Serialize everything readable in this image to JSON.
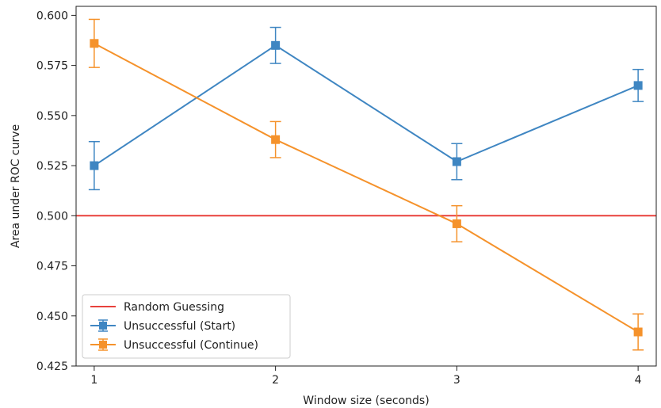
{
  "chart_data": {
    "type": "line",
    "title": "",
    "xlabel": "Window size (seconds)",
    "ylabel": "Area under ROC curve",
    "x": [
      1,
      2,
      3,
      4
    ],
    "x_tick_labels": [
      "1",
      "2",
      "3",
      "4"
    ],
    "xlim": [
      0.9,
      4.1
    ],
    "ylim": [
      0.425,
      0.6045
    ],
    "y_ticks": [
      0.425,
      0.45,
      0.475,
      0.5,
      0.525,
      0.55,
      0.575,
      0.6
    ],
    "y_tick_labels": [
      "0.425",
      "0.450",
      "0.475",
      "0.500",
      "0.525",
      "0.550",
      "0.575",
      "0.600"
    ],
    "grid": false,
    "legend_position": "lower-left",
    "reference_line": {
      "name": "Random Guessing",
      "y": 0.5,
      "color": "#e8413c"
    },
    "series": [
      {
        "name": "Unsuccessful (Start)",
        "color": "#3f86c2",
        "marker": "square",
        "values": [
          0.525,
          0.585,
          0.527,
          0.565
        ],
        "error": [
          0.012,
          0.009,
          0.009,
          0.008
        ]
      },
      {
        "name": "Unsuccessful (Continue)",
        "color": "#f5922b",
        "marker": "square",
        "values": [
          0.586,
          0.538,
          0.496,
          0.442
        ],
        "error": [
          0.012,
          0.009,
          0.009,
          0.009
        ]
      }
    ]
  }
}
